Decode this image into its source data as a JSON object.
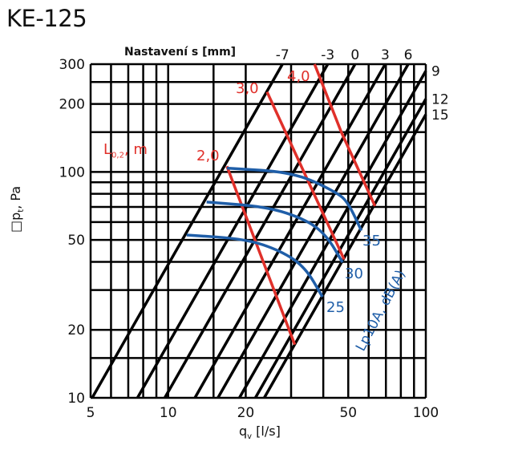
{
  "chart_data": {
    "type": "line",
    "title": "KE-125",
    "xlabel": "q_v [l/s]",
    "xlabel_main": "q",
    "xlabel_sub": "v",
    "xlabel_unit": " [l/s]",
    "ylabel_main": "□p",
    "ylabel_sub": "t",
    "ylabel_unit": ", Pa",
    "xscale": "log",
    "yscale": "log",
    "xlim": [
      5,
      100
    ],
    "ylim": [
      10,
      300
    ],
    "x_ticks": [
      5,
      10,
      20,
      50,
      100
    ],
    "y_ticks": [
      10,
      20,
      50,
      100,
      200,
      300
    ],
    "x_grid": [
      5,
      6,
      7,
      8,
      9,
      10,
      15,
      20,
      30,
      40,
      50,
      60,
      70,
      80,
      90,
      100
    ],
    "y_grid": [
      10,
      15,
      20,
      30,
      40,
      50,
      60,
      70,
      80,
      90,
      100,
      150,
      200,
      250,
      300
    ],
    "settings_title": "Nastavení s [mm]",
    "settings_lines": [
      {
        "label": "-7",
        "q_at_10Pa": 5.07
      },
      {
        "label": "-3",
        "q_at_10Pa": 7.6
      },
      {
        "label": "0",
        "q_at_10Pa": 9.7
      },
      {
        "label": "3",
        "q_at_10Pa": 12.7
      },
      {
        "label": "6",
        "q_at_10Pa": 15.6
      },
      {
        "label": "9",
        "q_at_10Pa": 18.9
      },
      {
        "label": "12",
        "q_at_10Pa": 21.8
      },
      {
        "label": "15",
        "q_at_10Pa": 23.6
      }
    ],
    "throw_title_main": "L",
    "throw_title_sub": "0,2",
    "throw_title_unit": ", m",
    "throw_lines": [
      {
        "label": "2,0",
        "points": [
          [
            16.9,
            106
          ],
          [
            31,
            17.2
          ]
        ]
      },
      {
        "label": "3,0",
        "points": [
          [
            24.2,
            226
          ],
          [
            48.2,
            41
          ]
        ]
      },
      {
        "label": "4,0",
        "points": [
          [
            37,
            300
          ],
          [
            47,
            150
          ],
          [
            63.5,
            70.6
          ]
        ]
      }
    ],
    "noise_title": "Lp10A, dB(A)",
    "noise_lines": [
      {
        "label": "35",
        "points": [
          [
            16.9,
            104
          ],
          [
            31,
            99.5
          ],
          [
            45.3,
            81
          ],
          [
            50,
            73
          ],
          [
            56.2,
            55
          ]
        ]
      },
      {
        "label": "30",
        "points": [
          [
            14.1,
            73.6
          ],
          [
            24.2,
            70.1
          ],
          [
            34,
            61.8
          ],
          [
            41.1,
            52.6
          ],
          [
            47.5,
            39.8
          ]
        ]
      },
      {
        "label": "25",
        "points": [
          [
            11.8,
            52.6
          ],
          [
            20,
            50.5
          ],
          [
            27.4,
            44.7
          ],
          [
            34,
            37.9
          ],
          [
            39.7,
            28
          ]
        ]
      }
    ],
    "colors": {
      "grid": "#000000",
      "throw": "#e0302a",
      "noise": "#1f5ea8"
    }
  }
}
